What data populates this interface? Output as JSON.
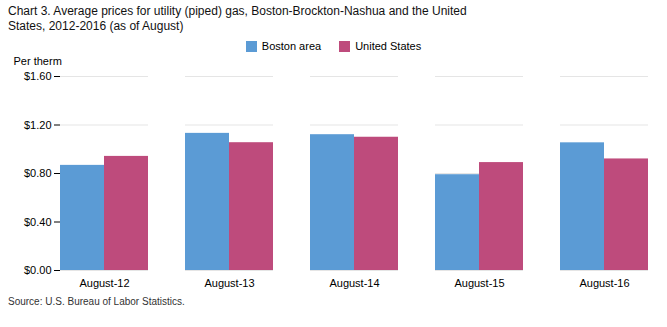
{
  "chart_data": {
    "type": "bar",
    "title": "Chart 3. Average prices for utility (piped) gas, Boston-Brockton-Nashua and the United",
    "subtitle": "States, 2012-2016 (as of August)",
    "ylabel": "Per therm",
    "source": "Source: U.S. Bureau of Labor Statistics.",
    "categories": [
      "August-12",
      "August-13",
      "August-14",
      "August-15",
      "August-16"
    ],
    "series": [
      {
        "name": "Boston area",
        "color": "#5B9BD5",
        "values": [
          0.867,
          1.131,
          1.12,
          0.79,
          1.053
        ]
      },
      {
        "name": "United States",
        "color": "#BE4B7C",
        "values": [
          0.941,
          1.054,
          1.099,
          0.89,
          0.92
        ]
      }
    ],
    "ylim": [
      0,
      1.6
    ],
    "yticks": [
      {
        "value": 0.0,
        "label": "$0.00"
      },
      {
        "value": 0.4,
        "label": "$0.40"
      },
      {
        "value": 0.8,
        "label": "$0.80"
      },
      {
        "value": 1.2,
        "label": "$1.20"
      },
      {
        "value": 1.6,
        "label": "$1.60"
      }
    ],
    "grid": true,
    "legend": "top"
  }
}
